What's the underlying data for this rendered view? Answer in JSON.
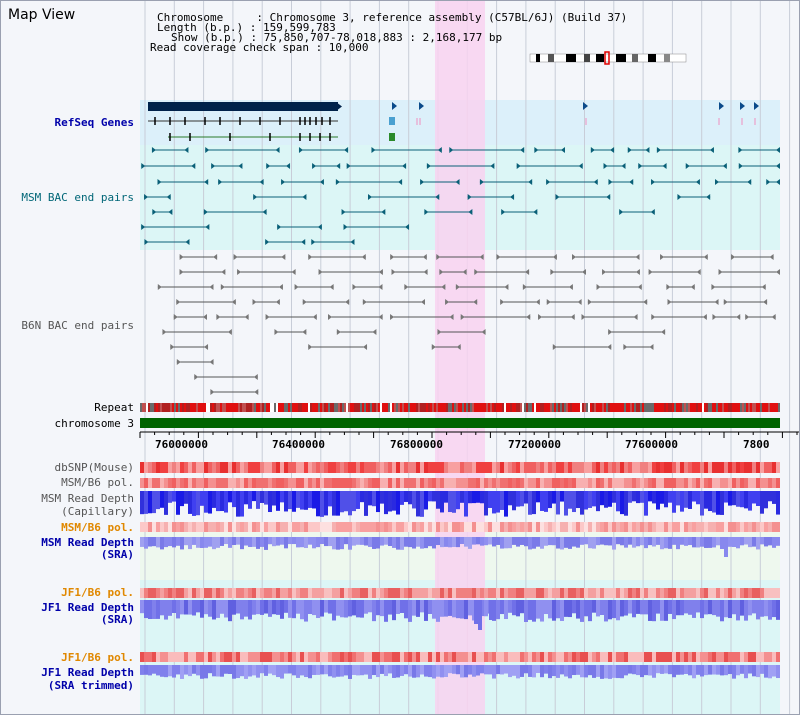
{
  "title": "Map View",
  "info": {
    "chrom_line": "Chromosome     : Chromosome 3, reference assembly (C57BL/6J) (Build 37)",
    "length_line": "Length (b.p.) : 159,599,783",
    "show_line": "Show (b.p.) : 75,850,707-78,018,883 : 2,168,177 bp",
    "span_line": "Read coverage check span : 10,000"
  },
  "tracks": {
    "refseq": "RefSeq Genes",
    "msm_bac": "MSM BAC end pairs",
    "b6n_bac": "B6N BAC end pairs",
    "repeat": "Repeat",
    "chromosome": "chromosome 3",
    "dbsnp": "dbSNP(Mouse)",
    "msm_b6_pol": "MSM/B6 pol.",
    "msm_depth_cap_1": "MSM Read Depth",
    "msm_depth_cap_2": "(Capillary)",
    "msm_b6_pol2": "MSM/B6 pol.",
    "msm_depth_sra_1": "MSM Read Depth",
    "msm_depth_sra_2": "(SRA)",
    "jf1_b6_pol": "JF1/B6 pol.",
    "jf1_depth_1": "JF1 Read Depth",
    "jf1_depth_2": "(SRA)",
    "jf1_b6_pol2": "JF1/B6 pol.",
    "jf1_trim_1": "JF1 Read Depth",
    "jf1_trim_2": "(SRA trimmed)"
  },
  "axis": {
    "ticks": [
      "76000000",
      "76400000",
      "76800000",
      "77200000",
      "77600000",
      "7800"
    ]
  },
  "colors": {
    "page_bg": "#f4f6fa",
    "highlight": "#f8d2f0",
    "refseq_bg": "#dcf0fa",
    "bac_bg": "#dcf6f6",
    "refseq_dark": "#00224a",
    "refseq_label": "#0000aa",
    "msm_bac_label": "#006677",
    "b6n_label": "#555555",
    "bac_line": "#0a6078",
    "b6n_line": "#555555",
    "chromosome": "#006400",
    "depth_blue": "#1a1ae6",
    "depth_light": "#8888ee",
    "pol_label": "#e08800",
    "msm_sra_bg": "#eef8ee",
    "jf1_bg": "#dcf6f6"
  }
}
